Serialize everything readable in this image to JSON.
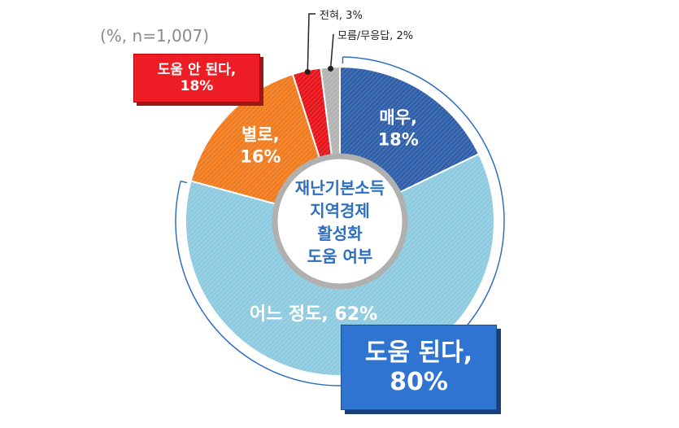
{
  "note": "(%, n=1,007)",
  "center_label": [
    "재난기본소득",
    "지역경제",
    "활성화",
    "도움 여부"
  ],
  "negative_summary": {
    "line1": "도움 안 된다,",
    "line2": "18%"
  },
  "positive_summary": {
    "line1": "도움 된다,",
    "line2": "80%"
  },
  "chart_data": {
    "type": "pie",
    "title": "",
    "slices": [
      {
        "name": "매우",
        "value": 18,
        "color": "#2f5fa8",
        "label_lines": [
          "매우,",
          "18%"
        ]
      },
      {
        "name": "어느 정도",
        "value": 62,
        "color": "#8ecbe0",
        "label_lines": [
          "어느 정도, 62%"
        ]
      },
      {
        "name": "별로",
        "value": 16,
        "color": "#f07c1f",
        "label_lines": [
          "별로,",
          "16%"
        ]
      },
      {
        "name": "전혀",
        "value": 3,
        "color": "#e8141b",
        "label_lines": [
          "전혀, 3%"
        ]
      },
      {
        "name": "모름/무응답",
        "value": 2,
        "color": "#b3b3b3",
        "label_lines": [
          "모름/무응답, 2%"
        ]
      }
    ],
    "groups": [
      {
        "name": "도움 된다",
        "value": 80,
        "slices": [
          "매우",
          "어느 정도"
        ]
      },
      {
        "name": "도움 안 된다",
        "value": 18,
        "slices": [
          "별로",
          "전혀"
        ]
      }
    ]
  }
}
